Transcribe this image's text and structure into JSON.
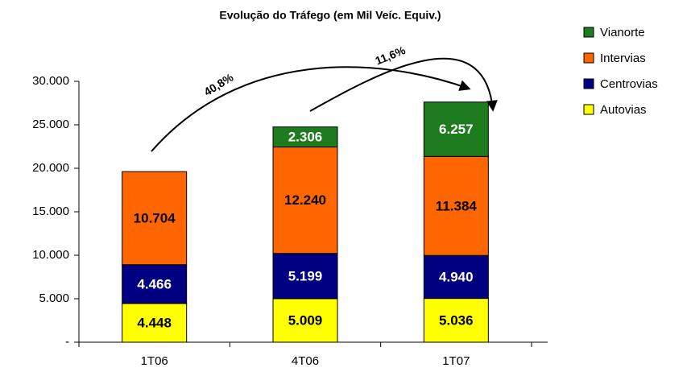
{
  "chart_data": {
    "type": "stacked_bar",
    "title": "Evolução do Tráfego (em Mil Veíc. Equiv.)",
    "categories": [
      "1T06",
      "4T06",
      "1T07"
    ],
    "series": [
      {
        "name": "Autovias",
        "color": "#ffff00",
        "values": [
          4448,
          5009,
          5036
        ],
        "value_labels": [
          "4.448",
          "5.009",
          "5.036"
        ]
      },
      {
        "name": "Centrovias",
        "color": "#000080",
        "values": [
          4466,
          5199,
          4940
        ],
        "value_labels": [
          "4.466",
          "5.199",
          "4.940"
        ]
      },
      {
        "name": "Intervias",
        "color": "#ff6600",
        "values": [
          10704,
          12240,
          11384
        ],
        "value_labels": [
          "10.704",
          "12.240",
          "11.384"
        ]
      },
      {
        "name": "Vianorte",
        "color": "#1e7b1e",
        "values": [
          null,
          2306,
          6257
        ],
        "value_labels": [
          null,
          "2.306",
          "6.257"
        ]
      }
    ],
    "ylim": [
      0,
      30000
    ],
    "yticks": [
      {
        "value": 0,
        "label": "-"
      },
      {
        "value": 5000,
        "label": "5.000"
      },
      {
        "value": 10000,
        "label": "10.000"
      },
      {
        "value": 15000,
        "label": "15.000"
      },
      {
        "value": 20000,
        "label": "20.000"
      },
      {
        "value": 25000,
        "label": "25.000"
      },
      {
        "value": 30000,
        "label": "30.000"
      }
    ],
    "annotations": [
      "40,8%",
      "11,6%"
    ],
    "legend": "right"
  }
}
